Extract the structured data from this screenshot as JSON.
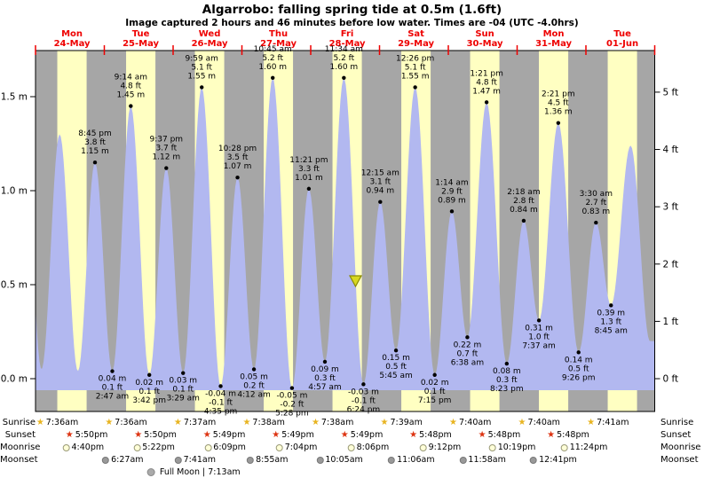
{
  "title": "Algarrobo: falling  spring tide at 0.5m (1.6ft)",
  "subtitle": "Image captured 2 hours and 46 minutes before low water. Times are -04 (UTC -4.0hrs)",
  "colors": {
    "day_band": "#ffffc2",
    "night_band": "#a6a6a6",
    "tide_fill": "#b2b8f0",
    "day_label_red": "#ee0000",
    "marker_fill": "#d8d820",
    "marker_stroke": "#8a8a00",
    "sunrise_icon": "#e8b420",
    "sunset_icon": "#dd3311",
    "moonrise_bg": "#ffffd8",
    "moonrise_border": "#999977",
    "moonset_bg": "#999999",
    "moonset_border": "#777777",
    "fullmoon_bg": "#aaaaaa",
    "fullmoon_border": "#888888"
  },
  "chart_data": {
    "type": "area",
    "title": "Algarrobo: falling  spring tide at 0.5m (1.6ft)",
    "x_days": [
      {
        "name": "Mon",
        "date": "24-May"
      },
      {
        "name": "Tue",
        "date": "25-May"
      },
      {
        "name": "Wed",
        "date": "26-May"
      },
      {
        "name": "Thu",
        "date": "27-May"
      },
      {
        "name": "Fri",
        "date": "28-May"
      },
      {
        "name": "Sat",
        "date": "29-May"
      },
      {
        "name": "Sun",
        "date": "30-May"
      },
      {
        "name": "Mon",
        "date": "31-May"
      },
      {
        "name": "Tue",
        "date": "01-Jun"
      }
    ],
    "y_axis_left": {
      "unit": "m",
      "ticks": [
        0.0,
        0.5,
        1.0,
        1.5
      ]
    },
    "y_axis_right": {
      "unit": "ft",
      "ticks": [
        0,
        1,
        2,
        3,
        4,
        5
      ]
    },
    "daylight": {
      "sunrise_hour": 7.6,
      "sunset_hour": 17.83
    },
    "now_marker": {
      "day": 4,
      "time": "3:38 pm",
      "height_m": 0.5
    },
    "tide_events": [
      {
        "day": -1,
        "time": "8:25 pm",
        "height_m": 1.17,
        "kind": "anchor"
      },
      {
        "day": 0,
        "time": "2:05 am",
        "height_m": 0.05,
        "kind": "anchor"
      },
      {
        "day": 0,
        "time": "8:25 am",
        "height_m": 1.3,
        "kind": "anchor"
      },
      {
        "day": 0,
        "time": "2:47 pm",
        "height_m": 0.04,
        "kind": "anchor"
      },
      {
        "day": 0,
        "time": "8:45 pm",
        "height_m": 1.15,
        "ft": "3.8 ft",
        "kind": "high"
      },
      {
        "day": 1,
        "time": "2:47 am",
        "height_m": 0.04,
        "ft": "0.1 ft",
        "kind": "low"
      },
      {
        "day": 1,
        "time": "9:14 am",
        "height_m": 1.45,
        "ft": "4.8 ft",
        "kind": "high"
      },
      {
        "day": 1,
        "time": "3:42 pm",
        "height_m": 0.02,
        "ft": "0.1 ft",
        "kind": "low"
      },
      {
        "day": 1,
        "time": "9:37 pm",
        "height_m": 1.12,
        "ft": "3.7 ft",
        "kind": "high"
      },
      {
        "day": 2,
        "time": "3:29 am",
        "height_m": 0.03,
        "ft": "0.1 ft",
        "kind": "low"
      },
      {
        "day": 2,
        "time": "9:59 am",
        "height_m": 1.55,
        "ft": "5.1 ft",
        "kind": "high"
      },
      {
        "day": 2,
        "time": "4:35 pm",
        "height_m": -0.04,
        "ft": "-0.1 ft",
        "kind": "low"
      },
      {
        "day": 2,
        "time": "10:28 pm",
        "height_m": 1.07,
        "ft": "3.5 ft",
        "kind": "high"
      },
      {
        "day": 3,
        "time": "4:12 am",
        "height_m": 0.05,
        "ft": "0.2 ft",
        "kind": "low"
      },
      {
        "day": 3,
        "time": "10:45 am",
        "height_m": 1.6,
        "ft": "5.2 ft",
        "kind": "high"
      },
      {
        "day": 3,
        "time": "5:28 pm",
        "height_m": -0.05,
        "ft": "-0.2 ft",
        "kind": "low"
      },
      {
        "day": 3,
        "time": "11:21 pm",
        "height_m": 1.01,
        "ft": "3.3 ft",
        "kind": "high"
      },
      {
        "day": 4,
        "time": "4:57 am",
        "height_m": 0.09,
        "ft": "0.3 ft",
        "kind": "low"
      },
      {
        "day": 4,
        "time": "11:34 am",
        "height_m": 1.6,
        "ft": "5.2 ft",
        "kind": "high"
      },
      {
        "day": 4,
        "time": "6:24 pm",
        "height_m": -0.03,
        "ft": "-0.1 ft",
        "kind": "low"
      },
      {
        "day": 5,
        "time": "12:15 am",
        "height_m": 0.94,
        "ft": "3.1 ft",
        "kind": "high"
      },
      {
        "day": 5,
        "time": "5:45 am",
        "height_m": 0.15,
        "ft": "0.5 ft",
        "kind": "low"
      },
      {
        "day": 5,
        "time": "12:26 pm",
        "height_m": 1.55,
        "ft": "5.1 ft",
        "kind": "high"
      },
      {
        "day": 5,
        "time": "7:15 pm",
        "height_m": 0.02,
        "ft": "0.1 ft",
        "kind": "low"
      },
      {
        "day": 6,
        "time": "1:14 am",
        "height_m": 0.89,
        "ft": "2.9 ft",
        "kind": "high"
      },
      {
        "day": 6,
        "time": "6:38 am",
        "height_m": 0.22,
        "ft": "0.7 ft",
        "kind": "low"
      },
      {
        "day": 6,
        "time": "1:21 pm",
        "height_m": 1.47,
        "ft": "4.8 ft",
        "kind": "high"
      },
      {
        "day": 6,
        "time": "8:23 pm",
        "height_m": 0.08,
        "ft": "0.3 ft",
        "kind": "low"
      },
      {
        "day": 7,
        "time": "2:18 am",
        "height_m": 0.84,
        "ft": "2.8 ft",
        "kind": "high"
      },
      {
        "day": 7,
        "time": "7:37 am",
        "height_m": 0.31,
        "ft": "1.0 ft",
        "kind": "low"
      },
      {
        "day": 7,
        "time": "2:21 pm",
        "height_m": 1.36,
        "ft": "4.5 ft",
        "kind": "high"
      },
      {
        "day": 7,
        "time": "9:26 pm",
        "height_m": 0.14,
        "ft": "0.5 ft",
        "kind": "low"
      },
      {
        "day": 8,
        "time": "3:30 am",
        "height_m": 0.83,
        "ft": "2.7 ft",
        "kind": "high"
      },
      {
        "day": 8,
        "time": "8:45 am",
        "height_m": 0.39,
        "ft": "1.3 ft",
        "kind": "low"
      },
      {
        "day": 8,
        "time": "3:35 pm",
        "height_m": 1.24,
        "kind": "anchor"
      },
      {
        "day": 8,
        "time": "10:20 pm",
        "height_m": 0.2,
        "kind": "anchor"
      }
    ]
  },
  "almanac": {
    "left_labels": [
      "Sunrise",
      "Sunset",
      "Moonrise",
      "Moonset"
    ],
    "right_labels": [
      "Sunrise",
      "Sunset",
      "Moonrise",
      "Moonset"
    ],
    "sunrise": [
      {
        "day": 0,
        "time": "7:36am"
      },
      {
        "day": 1,
        "time": "7:36am"
      },
      {
        "day": 2,
        "time": "7:37am"
      },
      {
        "day": 3,
        "time": "7:38am"
      },
      {
        "day": 4,
        "time": "7:38am"
      },
      {
        "day": 5,
        "time": "7:39am"
      },
      {
        "day": 6,
        "time": "7:40am"
      },
      {
        "day": 7,
        "time": "7:40am"
      },
      {
        "day": 8,
        "time": "7:41am"
      }
    ],
    "sunset": [
      {
        "day": 0,
        "time": "5:50pm"
      },
      {
        "day": 1,
        "time": "5:50pm"
      },
      {
        "day": 2,
        "time": "5:49pm"
      },
      {
        "day": 3,
        "time": "5:49pm"
      },
      {
        "day": 4,
        "time": "5:49pm"
      },
      {
        "day": 5,
        "time": "5:48pm"
      },
      {
        "day": 6,
        "time": "5:48pm"
      },
      {
        "day": 7,
        "time": "5:48pm"
      }
    ],
    "moonrise": [
      {
        "day": 0,
        "time": "4:40pm"
      },
      {
        "day": 1,
        "time": "5:22pm"
      },
      {
        "day": 2,
        "time": "6:09pm"
      },
      {
        "day": 3,
        "time": "7:04pm"
      },
      {
        "day": 4,
        "time": "8:06pm"
      },
      {
        "day": 5,
        "time": "9:12pm"
      },
      {
        "day": 6,
        "time": "10:19pm"
      },
      {
        "day": 7,
        "time": "11:24pm"
      }
    ],
    "moonset": [
      {
        "day": 1,
        "time": "6:27am"
      },
      {
        "day": 2,
        "time": "7:41am"
      },
      {
        "day": 3,
        "time": "8:55am"
      },
      {
        "day": 4,
        "time": "10:05am"
      },
      {
        "day": 5,
        "time": "11:06am"
      },
      {
        "day": 6,
        "time": "11:58am"
      },
      {
        "day": 7,
        "time": "12:41pm"
      }
    ],
    "full_moon": {
      "text": "Full Moon | 7:13am",
      "day": 2,
      "time": "7:13am"
    }
  }
}
